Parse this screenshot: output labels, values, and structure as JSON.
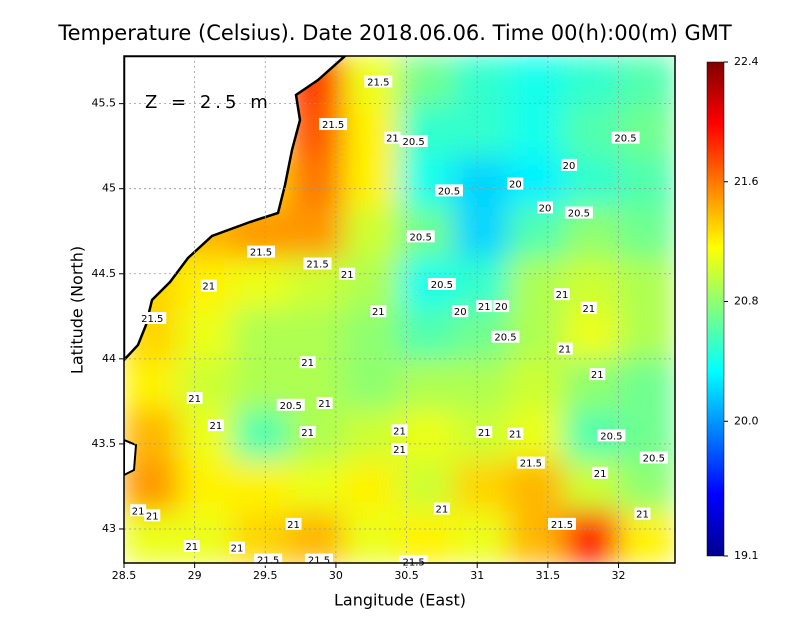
{
  "chart_data": {
    "type": "heatmap",
    "title": "Temperature (Celsius). Date 2018.06.06. Time 00(h):00(m) GMT",
    "annotation": "Z = 2.5 m",
    "xlabel": "Langitude (East)",
    "ylabel": "Latitude (North)",
    "xlim": [
      28.5,
      32.4
    ],
    "ylim": [
      42.8,
      45.78
    ],
    "xticks": [
      28.5,
      29,
      29.5,
      30,
      30.5,
      31,
      31.5,
      32
    ],
    "yticks": [
      43,
      43.5,
      44,
      44.5,
      45,
      45.5
    ],
    "grid": true,
    "clim": [
      19.1,
      22.4
    ],
    "cticks": [
      19.1,
      {
        "value": 20,
        "label": "20.0"
      },
      20.8,
      21.6,
      22.4
    ],
    "colormap": [
      "#00008f",
      "#0000ff",
      "#0080ff",
      "#00ffff",
      "#80ff80",
      "#ffff00",
      "#ff8000",
      "#ff0000",
      "#800000"
    ],
    "z": [
      [
        null,
        null,
        null,
        21.8,
        21.1,
        20.7,
        20.5,
        20.4,
        20.5,
        20.6
      ],
      [
        null,
        null,
        null,
        21.7,
        21.2,
        20.5,
        20.5,
        20.4,
        20.6,
        20.7
      ],
      [
        null,
        null,
        21.3,
        21.6,
        21.2,
        20.4,
        20.2,
        20.3,
        20.5,
        20.6
      ],
      [
        21.2,
        21.4,
        21.5,
        21.5,
        21.0,
        20.7,
        20.2,
        20.6,
        20.8,
        20.7
      ],
      [
        21.3,
        21.2,
        21.1,
        21.0,
        20.9,
        20.4,
        20.5,
        20.9,
        21.0,
        20.9
      ],
      [
        21.3,
        21.1,
        20.9,
        20.9,
        20.8,
        20.6,
        20.7,
        20.9,
        21.1,
        20.9
      ],
      [
        21.2,
        21.0,
        20.9,
        20.9,
        20.8,
        20.9,
        20.9,
        21.0,
        20.8,
        20.7
      ],
      [
        21.4,
        21.1,
        20.6,
        20.9,
        21.0,
        21.1,
        21.0,
        21.1,
        20.6,
        20.7
      ],
      [
        21.5,
        21.2,
        21.2,
        21.1,
        21.2,
        21.0,
        21.3,
        21.4,
        21.0,
        20.8
      ],
      [
        21.1,
        21.1,
        21.3,
        21.4,
        21.1,
        21.2,
        21.1,
        21.4,
        21.9,
        21.2
      ]
    ],
    "contour_labels": [
      {
        "x": 30.3,
        "y": 45.63,
        "value": 21.5
      },
      {
        "x": 29.98,
        "y": 45.38,
        "value": 21.5
      },
      {
        "x": 30.4,
        "y": 45.3,
        "value": 21
      },
      {
        "x": 30.55,
        "y": 45.28,
        "value": 20.5
      },
      {
        "x": 32.05,
        "y": 45.3,
        "value": 20.5
      },
      {
        "x": 31.65,
        "y": 45.14,
        "value": 20
      },
      {
        "x": 30.8,
        "y": 44.99,
        "value": 20.5
      },
      {
        "x": 31.27,
        "y": 45.03,
        "value": 20
      },
      {
        "x": 31.48,
        "y": 44.89,
        "value": 20
      },
      {
        "x": 31.72,
        "y": 44.86,
        "value": 20.5
      },
      {
        "x": 30.6,
        "y": 44.72,
        "value": 20.5
      },
      {
        "x": 29.47,
        "y": 44.63,
        "value": 21.5
      },
      {
        "x": 29.87,
        "y": 44.56,
        "value": 21.5
      },
      {
        "x": 30.08,
        "y": 44.5,
        "value": 21
      },
      {
        "x": 29.1,
        "y": 44.43,
        "value": 21
      },
      {
        "x": 30.75,
        "y": 44.44,
        "value": 20.5
      },
      {
        "x": 31.6,
        "y": 44.38,
        "value": 21
      },
      {
        "x": 31.79,
        "y": 44.3,
        "value": 21
      },
      {
        "x": 28.7,
        "y": 44.24,
        "value": 21.5
      },
      {
        "x": 30.3,
        "y": 44.28,
        "value": 21
      },
      {
        "x": 30.88,
        "y": 44.28,
        "value": 20
      },
      {
        "x": 31.05,
        "y": 44.31,
        "value": 21
      },
      {
        "x": 31.17,
        "y": 44.31,
        "value": 20
      },
      {
        "x": 31.2,
        "y": 44.13,
        "value": 20.5
      },
      {
        "x": 31.62,
        "y": 44.06,
        "value": 21
      },
      {
        "x": 29.8,
        "y": 43.98,
        "value": 21
      },
      {
        "x": 31.85,
        "y": 43.91,
        "value": 21
      },
      {
        "x": 29.0,
        "y": 43.77,
        "value": 21
      },
      {
        "x": 29.68,
        "y": 43.73,
        "value": 20.5
      },
      {
        "x": 29.92,
        "y": 43.74,
        "value": 21
      },
      {
        "x": 29.15,
        "y": 43.61,
        "value": 21
      },
      {
        "x": 29.8,
        "y": 43.57,
        "value": 21
      },
      {
        "x": 30.45,
        "y": 43.58,
        "value": 21
      },
      {
        "x": 31.05,
        "y": 43.57,
        "value": 21
      },
      {
        "x": 31.27,
        "y": 43.56,
        "value": 21
      },
      {
        "x": 31.95,
        "y": 43.55,
        "value": 20.5
      },
      {
        "x": 30.45,
        "y": 43.47,
        "value": 21
      },
      {
        "x": 31.38,
        "y": 43.39,
        "value": 21.5
      },
      {
        "x": 32.25,
        "y": 43.42,
        "value": 20.5
      },
      {
        "x": 31.87,
        "y": 43.33,
        "value": 21
      },
      {
        "x": 30.75,
        "y": 43.12,
        "value": 21
      },
      {
        "x": 28.6,
        "y": 43.11,
        "value": 21
      },
      {
        "x": 28.7,
        "y": 43.08,
        "value": 21
      },
      {
        "x": 29.7,
        "y": 43.03,
        "value": 21
      },
      {
        "x": 31.6,
        "y": 43.03,
        "value": 21.5
      },
      {
        "x": 32.17,
        "y": 43.09,
        "value": 21
      },
      {
        "x": 28.98,
        "y": 42.9,
        "value": 21
      },
      {
        "x": 29.3,
        "y": 42.89,
        "value": 21
      },
      {
        "x": 29.52,
        "y": 42.82,
        "value": 21.5
      },
      {
        "x": 29.88,
        "y": 42.82,
        "value": 21.5
      },
      {
        "x": 30.55,
        "y": 42.81,
        "value": 21.5
      }
    ]
  }
}
